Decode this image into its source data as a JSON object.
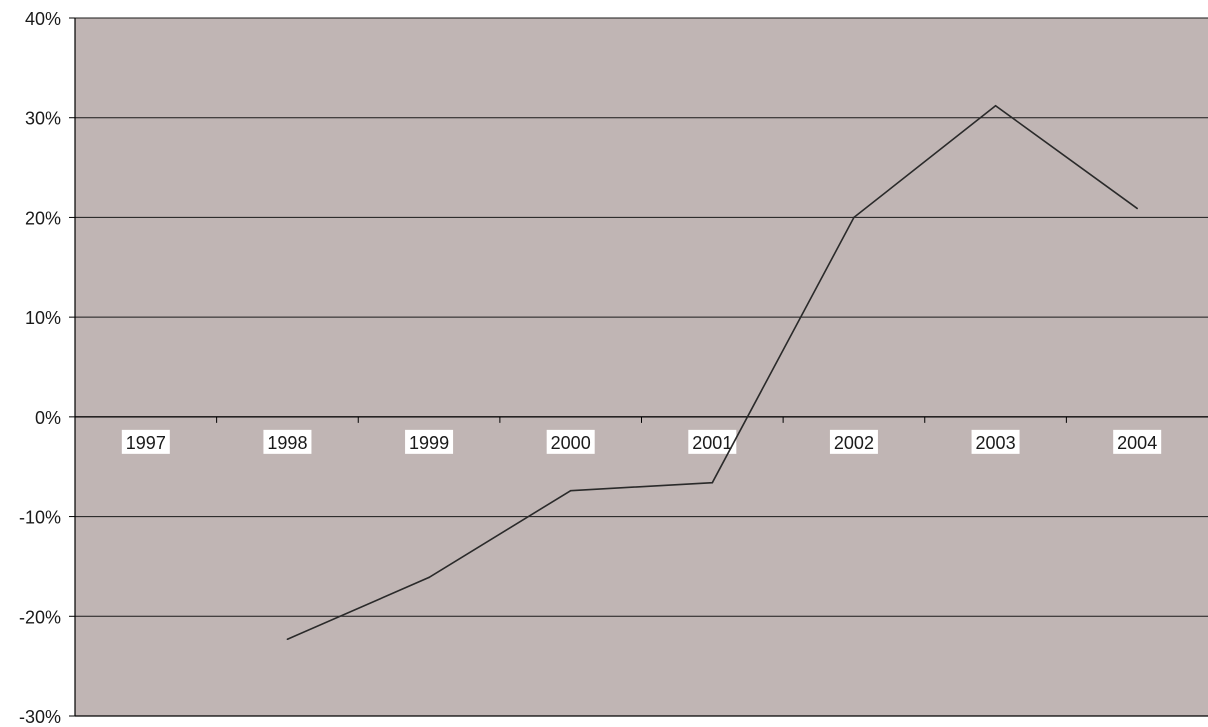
{
  "chart_data": {
    "type": "line",
    "categories": [
      "1997",
      "1998",
      "1999",
      "2000",
      "2001",
      "2002",
      "2003",
      "2004"
    ],
    "series": [
      {
        "values": [
          null,
          -22.3,
          -16.1,
          -7.4,
          -6.6,
          20.0,
          31.2,
          20.9
        ]
      }
    ],
    "ylim": [
      -30,
      40
    ],
    "yticks": [
      -30,
      -20,
      -10,
      0,
      10,
      20,
      30,
      40
    ],
    "ytick_labels": [
      "-30%",
      "-20%",
      "-10%",
      "0%",
      "10%",
      "20%",
      "30%",
      "40%"
    ],
    "grid": true,
    "legend": "none",
    "colors": {
      "plot_background": "#c0b5b4",
      "line": "#2a2a2a",
      "gridline": "#1a1a1a",
      "category_label_background": "#ffffff"
    }
  }
}
